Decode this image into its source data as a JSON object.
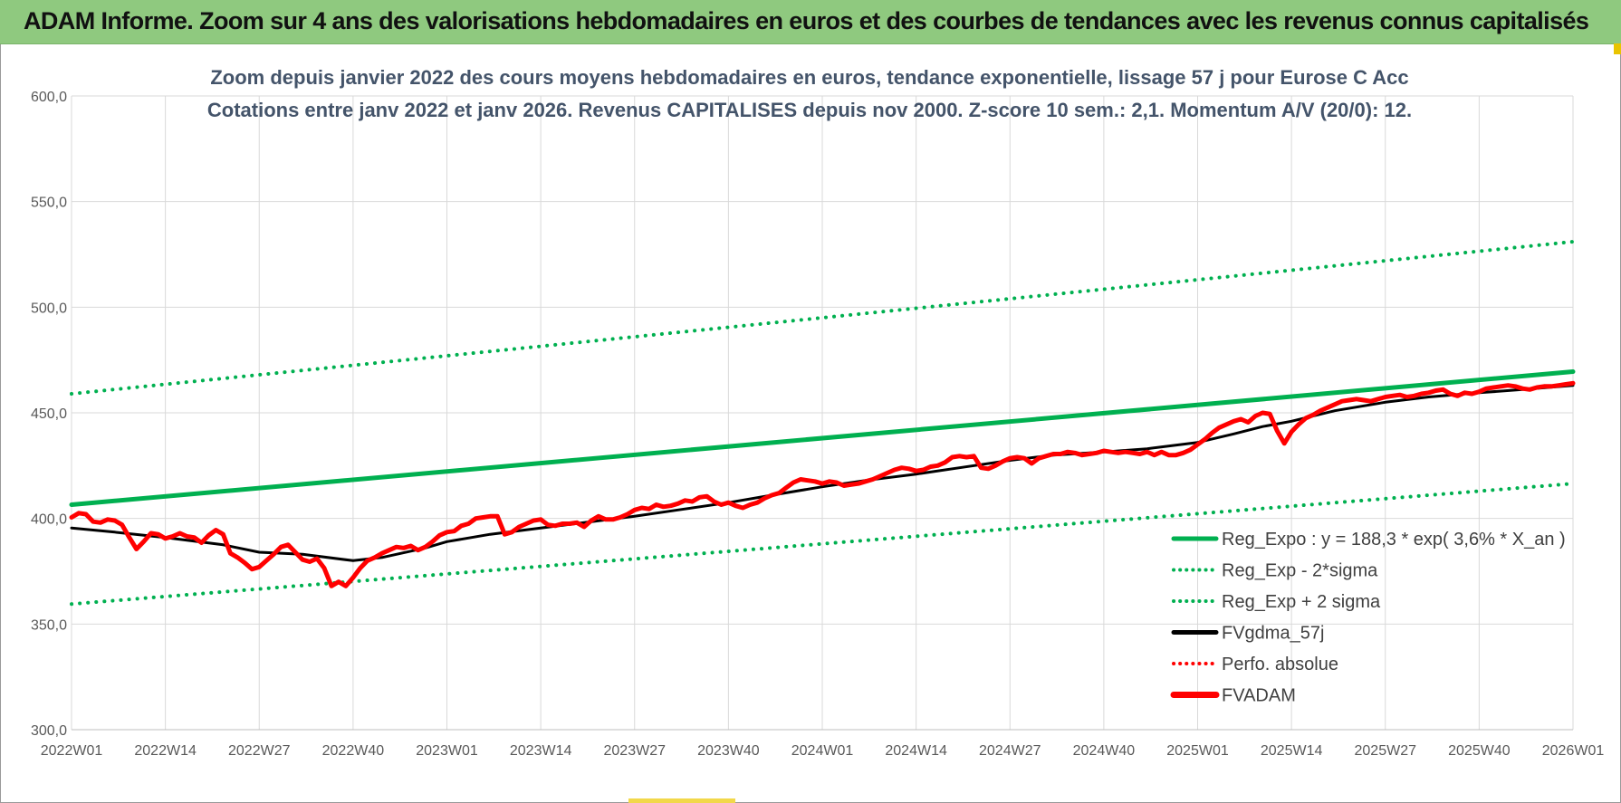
{
  "header": {
    "title": "ADAM Informe. Zoom sur 4 ans des valorisations hebdomadaires en euros et des courbes de tendances avec les revenus connus capitalisés"
  },
  "colors": {
    "banner": "#8fc97f",
    "trend": "#00b050",
    "smoothed": "#000000",
    "price": "#ff0000",
    "grid": "#d9d9d9"
  },
  "chart_data": {
    "type": "line",
    "title": "Zoom depuis janvier 2022 des cours moyens hebdomadaires en euros, tendance exponentielle, lissage 57 j pour Eurose C Acc",
    "subtitle": "Cotations entre janv 2022 et janv 2026. Revenus CAPITALISES depuis nov 2000. Z-score 10 sem.: 2,1. Momentum A/V (20/0): 12.",
    "xlabel": "",
    "ylabel": "",
    "ylim": [
      300,
      600
    ],
    "yticks": [
      "600,0",
      "550,0",
      "500,0",
      "450,0",
      "400,0",
      "350,0",
      "300,0"
    ],
    "xticks": [
      "2022W01",
      "2022W14",
      "2022W27",
      "2022W40",
      "2023W01",
      "2023W14",
      "2023W27",
      "2023W40",
      "2024W01",
      "2024W14",
      "2024W27",
      "2024W40",
      "2025W01",
      "2025W14",
      "2025W27",
      "2025W40",
      "2026W01"
    ],
    "grid": true,
    "legend_position": "bottom-right",
    "series": [
      {
        "name": "Reg_Expo : y = 188,3 * exp( 3,6% *  X_an )",
        "style": "solid",
        "color": "#00b050",
        "points": [
          [
            "2022W01",
            406.5
          ],
          [
            "2026W01",
            469.5
          ]
        ]
      },
      {
        "name": "Reg_Exp - 2*sigma",
        "style": "dotted",
        "color": "#00b050",
        "points": [
          [
            "2022W01",
            359.5
          ],
          [
            "2026W01",
            416.5
          ]
        ]
      },
      {
        "name": "Reg_Exp + 2 sigma",
        "style": "dotted",
        "color": "#00b050",
        "points": [
          [
            "2022W01",
            459.0
          ],
          [
            "2026W01",
            531.0
          ]
        ]
      },
      {
        "name": "FVgdma_57j",
        "style": "solid",
        "color": "#000000",
        "points": [
          [
            "2022W01",
            395.5
          ],
          [
            "2022W07",
            393.5
          ],
          [
            "2022W14",
            391.0
          ],
          [
            "2022W22",
            387.5
          ],
          [
            "2022W27",
            384.0
          ],
          [
            "2022W33",
            383.0
          ],
          [
            "2022W40",
            380.0
          ],
          [
            "2022W44",
            381.5
          ],
          [
            "2022W50",
            386.0
          ],
          [
            "2023W01",
            389.0
          ],
          [
            "2023W07",
            392.5
          ],
          [
            "2023W14",
            395.5
          ],
          [
            "2023W20",
            398.0
          ],
          [
            "2023W27",
            401.0
          ],
          [
            "2023W33",
            404.0
          ],
          [
            "2023W40",
            407.5
          ],
          [
            "2023W46",
            411.0
          ],
          [
            "2024W01",
            415.0
          ],
          [
            "2024W07",
            418.0
          ],
          [
            "2024W14",
            421.0
          ],
          [
            "2024W20",
            424.0
          ],
          [
            "2024W27",
            427.5
          ],
          [
            "2024W33",
            430.0
          ],
          [
            "2024W40",
            431.5
          ],
          [
            "2024W46",
            433.0
          ],
          [
            "2025W01",
            436.0
          ],
          [
            "2025W06",
            440.0
          ],
          [
            "2025W10",
            443.5
          ],
          [
            "2025W14",
            446.0
          ],
          [
            "2025W20",
            451.0
          ],
          [
            "2025W27",
            455.0
          ],
          [
            "2025W33",
            457.5
          ],
          [
            "2025W40",
            459.5
          ],
          [
            "2025W46",
            461.0
          ],
          [
            "2026W01",
            463.0
          ]
        ]
      },
      {
        "name": "Perfo. absolue",
        "style": "dotted",
        "color": "#ff0000",
        "points": []
      },
      {
        "name": "FVADAM",
        "style": "solid",
        "color": "#ff0000",
        "points": [
          [
            "2022W01",
            400.5
          ],
          [
            "2022W02",
            402.5
          ],
          [
            "2022W03",
            402.0
          ],
          [
            "2022W04",
            398.5
          ],
          [
            "2022W05",
            398.0
          ],
          [
            "2022W06",
            399.5
          ],
          [
            "2022W07",
            399.0
          ],
          [
            "2022W08",
            397.0
          ],
          [
            "2022W09",
            391.0
          ],
          [
            "2022W10",
            385.5
          ],
          [
            "2022W11",
            389.0
          ],
          [
            "2022W12",
            393.0
          ],
          [
            "2022W13",
            392.5
          ],
          [
            "2022W14",
            390.5
          ],
          [
            "2022W15",
            391.5
          ],
          [
            "2022W16",
            393.0
          ],
          [
            "2022W17",
            391.5
          ],
          [
            "2022W18",
            391.0
          ],
          [
            "2022W19",
            388.5
          ],
          [
            "2022W20",
            392.0
          ],
          [
            "2022W21",
            394.5
          ],
          [
            "2022W22",
            392.5
          ],
          [
            "2022W23",
            383.5
          ],
          [
            "2022W24",
            381.5
          ],
          [
            "2022W25",
            379.0
          ],
          [
            "2022W26",
            376.0
          ],
          [
            "2022W27",
            377.0
          ],
          [
            "2022W28",
            380.0
          ],
          [
            "2022W29",
            383.0
          ],
          [
            "2022W30",
            386.5
          ],
          [
            "2022W31",
            387.5
          ],
          [
            "2022W32",
            384.0
          ],
          [
            "2022W33",
            380.5
          ],
          [
            "2022W34",
            379.5
          ],
          [
            "2022W35",
            381.0
          ],
          [
            "2022W36",
            376.5
          ],
          [
            "2022W37",
            368.0
          ],
          [
            "2022W38",
            370.0
          ],
          [
            "2022W39",
            368.0
          ],
          [
            "2022W40",
            372.0
          ],
          [
            "2022W41",
            376.5
          ],
          [
            "2022W42",
            380.0
          ],
          [
            "2022W43",
            381.5
          ],
          [
            "2022W44",
            383.5
          ],
          [
            "2022W45",
            385.0
          ],
          [
            "2022W46",
            386.5
          ],
          [
            "2022W47",
            386.0
          ],
          [
            "2022W48",
            387.0
          ],
          [
            "2022W49",
            385.0
          ],
          [
            "2022W50",
            386.5
          ],
          [
            "2022W51",
            389.0
          ],
          [
            "2022W52",
            392.0
          ],
          [
            "2023W01",
            393.5
          ],
          [
            "2023W02",
            394.0
          ],
          [
            "2023W03",
            396.5
          ],
          [
            "2023W04",
            397.5
          ],
          [
            "2023W05",
            400.0
          ],
          [
            "2023W06",
            400.5
          ],
          [
            "2023W07",
            401.0
          ],
          [
            "2023W08",
            401.0
          ],
          [
            "2023W09",
            392.5
          ],
          [
            "2023W10",
            393.5
          ],
          [
            "2023W11",
            396.0
          ],
          [
            "2023W12",
            397.5
          ],
          [
            "2023W13",
            399.0
          ],
          [
            "2023W14",
            399.5
          ],
          [
            "2023W15",
            397.0
          ],
          [
            "2023W16",
            396.5
          ],
          [
            "2023W17",
            397.5
          ],
          [
            "2023W18",
            397.5
          ],
          [
            "2023W19",
            398.0
          ],
          [
            "2023W20",
            396.0
          ],
          [
            "2023W21",
            399.0
          ],
          [
            "2023W22",
            401.0
          ],
          [
            "2023W23",
            399.5
          ],
          [
            "2023W24",
            399.5
          ],
          [
            "2023W25",
            400.5
          ],
          [
            "2023W26",
            402.0
          ],
          [
            "2023W27",
            404.0
          ],
          [
            "2023W28",
            405.0
          ],
          [
            "2023W29",
            404.5
          ],
          [
            "2023W30",
            406.5
          ],
          [
            "2023W31",
            405.5
          ],
          [
            "2023W32",
            406.0
          ],
          [
            "2023W33",
            407.0
          ],
          [
            "2023W34",
            408.5
          ],
          [
            "2023W35",
            408.0
          ],
          [
            "2023W36",
            410.0
          ],
          [
            "2023W37",
            410.5
          ],
          [
            "2023W38",
            408.0
          ],
          [
            "2023W39",
            406.5
          ],
          [
            "2023W40",
            407.5
          ],
          [
            "2023W41",
            406.0
          ],
          [
            "2023W42",
            405.0
          ],
          [
            "2023W43",
            406.5
          ],
          [
            "2023W44",
            407.5
          ],
          [
            "2023W45",
            409.5
          ],
          [
            "2023W46",
            411.0
          ],
          [
            "2023W47",
            412.0
          ],
          [
            "2023W48",
            414.5
          ],
          [
            "2023W49",
            417.0
          ],
          [
            "2023W50",
            418.5
          ],
          [
            "2023W51",
            418.0
          ],
          [
            "2023W52",
            417.5
          ],
          [
            "2024W01",
            416.5
          ],
          [
            "2024W02",
            417.5
          ],
          [
            "2024W03",
            417.0
          ],
          [
            "2024W04",
            415.5
          ],
          [
            "2024W05",
            416.0
          ],
          [
            "2024W06",
            416.5
          ],
          [
            "2024W07",
            417.5
          ],
          [
            "2024W08",
            418.5
          ],
          [
            "2024W09",
            420.0
          ],
          [
            "2024W10",
            421.5
          ],
          [
            "2024W11",
            423.0
          ],
          [
            "2024W12",
            424.0
          ],
          [
            "2024W13",
            423.5
          ],
          [
            "2024W14",
            422.5
          ],
          [
            "2024W15",
            423.0
          ],
          [
            "2024W16",
            424.5
          ],
          [
            "2024W17",
            425.0
          ],
          [
            "2024W18",
            426.5
          ],
          [
            "2024W19",
            429.0
          ],
          [
            "2024W20",
            429.5
          ],
          [
            "2024W21",
            429.0
          ],
          [
            "2024W22",
            429.5
          ],
          [
            "2024W23",
            424.0
          ],
          [
            "2024W24",
            423.5
          ],
          [
            "2024W25",
            425.0
          ],
          [
            "2024W26",
            427.0
          ],
          [
            "2024W27",
            428.5
          ],
          [
            "2024W28",
            429.0
          ],
          [
            "2024W29",
            428.5
          ],
          [
            "2024W30",
            426.0
          ],
          [
            "2024W31",
            428.5
          ],
          [
            "2024W32",
            429.5
          ],
          [
            "2024W33",
            430.5
          ],
          [
            "2024W34",
            430.5
          ],
          [
            "2024W35",
            431.5
          ],
          [
            "2024W36",
            431.0
          ],
          [
            "2024W37",
            430.0
          ],
          [
            "2024W38",
            430.5
          ],
          [
            "2024W39",
            431.0
          ],
          [
            "2024W40",
            432.0
          ],
          [
            "2024W41",
            431.5
          ],
          [
            "2024W42",
            431.0
          ],
          [
            "2024W43",
            431.5
          ],
          [
            "2024W44",
            431.0
          ],
          [
            "2024W45",
            430.5
          ],
          [
            "2024W46",
            431.5
          ],
          [
            "2024W47",
            430.0
          ],
          [
            "2024W48",
            431.5
          ],
          [
            "2024W49",
            430.0
          ],
          [
            "2024W50",
            430.0
          ],
          [
            "2024W51",
            431.0
          ],
          [
            "2024W52",
            432.5
          ],
          [
            "2025W01",
            435.0
          ],
          [
            "2025W02",
            437.5
          ],
          [
            "2025W03",
            440.5
          ],
          [
            "2025W04",
            443.0
          ],
          [
            "2025W05",
            444.5
          ],
          [
            "2025W06",
            446.0
          ],
          [
            "2025W07",
            447.0
          ],
          [
            "2025W08",
            445.5
          ],
          [
            "2025W09",
            448.5
          ],
          [
            "2025W10",
            450.0
          ],
          [
            "2025W11",
            449.5
          ],
          [
            "2025W12",
            441.5
          ],
          [
            "2025W13",
            435.5
          ],
          [
            "2025W14",
            441.0
          ],
          [
            "2025W15",
            444.5
          ],
          [
            "2025W16",
            447.5
          ],
          [
            "2025W17",
            449.0
          ],
          [
            "2025W18",
            451.0
          ],
          [
            "2025W19",
            452.5
          ],
          [
            "2025W20",
            454.0
          ],
          [
            "2025W21",
            455.5
          ],
          [
            "2025W22",
            456.0
          ],
          [
            "2025W23",
            456.5
          ],
          [
            "2025W24",
            456.0
          ],
          [
            "2025W25",
            455.5
          ],
          [
            "2025W26",
            456.5
          ],
          [
            "2025W27",
            457.5
          ],
          [
            "2025W28",
            458.0
          ],
          [
            "2025W29",
            458.5
          ],
          [
            "2025W30",
            457.5
          ],
          [
            "2025W31",
            458.0
          ],
          [
            "2025W32",
            459.0
          ],
          [
            "2025W33",
            459.5
          ],
          [
            "2025W34",
            460.5
          ],
          [
            "2025W35",
            461.0
          ],
          [
            "2025W36",
            459.0
          ],
          [
            "2025W37",
            458.0
          ],
          [
            "2025W38",
            459.5
          ],
          [
            "2025W39",
            459.0
          ],
          [
            "2025W40",
            460.0
          ],
          [
            "2025W41",
            461.5
          ],
          [
            "2025W42",
            462.0
          ],
          [
            "2025W43",
            462.5
          ],
          [
            "2025W44",
            463.0
          ],
          [
            "2025W45",
            462.5
          ],
          [
            "2025W46",
            461.5
          ],
          [
            "2025W47",
            461.0
          ],
          [
            "2025W48",
            462.0
          ],
          [
            "2025W49",
            462.5
          ],
          [
            "2025W50",
            462.5
          ],
          [
            "2025W51",
            463.0
          ],
          [
            "2025W52",
            463.5
          ],
          [
            "2026W01",
            464.0
          ]
        ]
      }
    ]
  }
}
